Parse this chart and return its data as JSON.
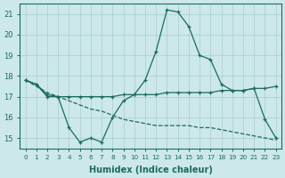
{
  "xlabel": "Humidex (Indice chaleur)",
  "x": [
    0,
    1,
    2,
    3,
    4,
    5,
    6,
    7,
    8,
    9,
    10,
    11,
    12,
    13,
    14,
    15,
    16,
    17,
    18,
    19,
    20,
    21,
    22,
    23
  ],
  "line1": [
    17.8,
    17.6,
    17.0,
    17.0,
    15.5,
    14.8,
    15.0,
    14.8,
    16.0,
    16.8,
    17.1,
    17.8,
    19.2,
    21.2,
    21.1,
    20.4,
    19.0,
    18.8,
    17.6,
    17.3,
    17.3,
    17.4,
    15.9,
    15.0
  ],
  "line2": [
    17.8,
    17.6,
    17.1,
    17.0,
    17.0,
    17.0,
    17.0,
    17.0,
    17.0,
    17.1,
    17.1,
    17.1,
    17.1,
    17.2,
    17.2,
    17.2,
    17.2,
    17.2,
    17.3,
    17.3,
    17.3,
    17.4,
    17.4,
    17.5
  ],
  "line3": [
    17.8,
    17.5,
    17.2,
    17.0,
    16.8,
    16.6,
    16.4,
    16.3,
    16.1,
    15.9,
    15.8,
    15.7,
    15.6,
    15.6,
    15.6,
    15.6,
    15.5,
    15.5,
    15.4,
    15.3,
    15.2,
    15.1,
    15.0,
    14.9
  ],
  "line_color": "#1a6b5a",
  "bg_color": "#cce8ea",
  "grid_color": "#aacccc",
  "ylim": [
    14.5,
    21.5
  ],
  "yticks": [
    15,
    16,
    17,
    18,
    19,
    20,
    21
  ],
  "xlim": [
    -0.5,
    23.5
  ]
}
